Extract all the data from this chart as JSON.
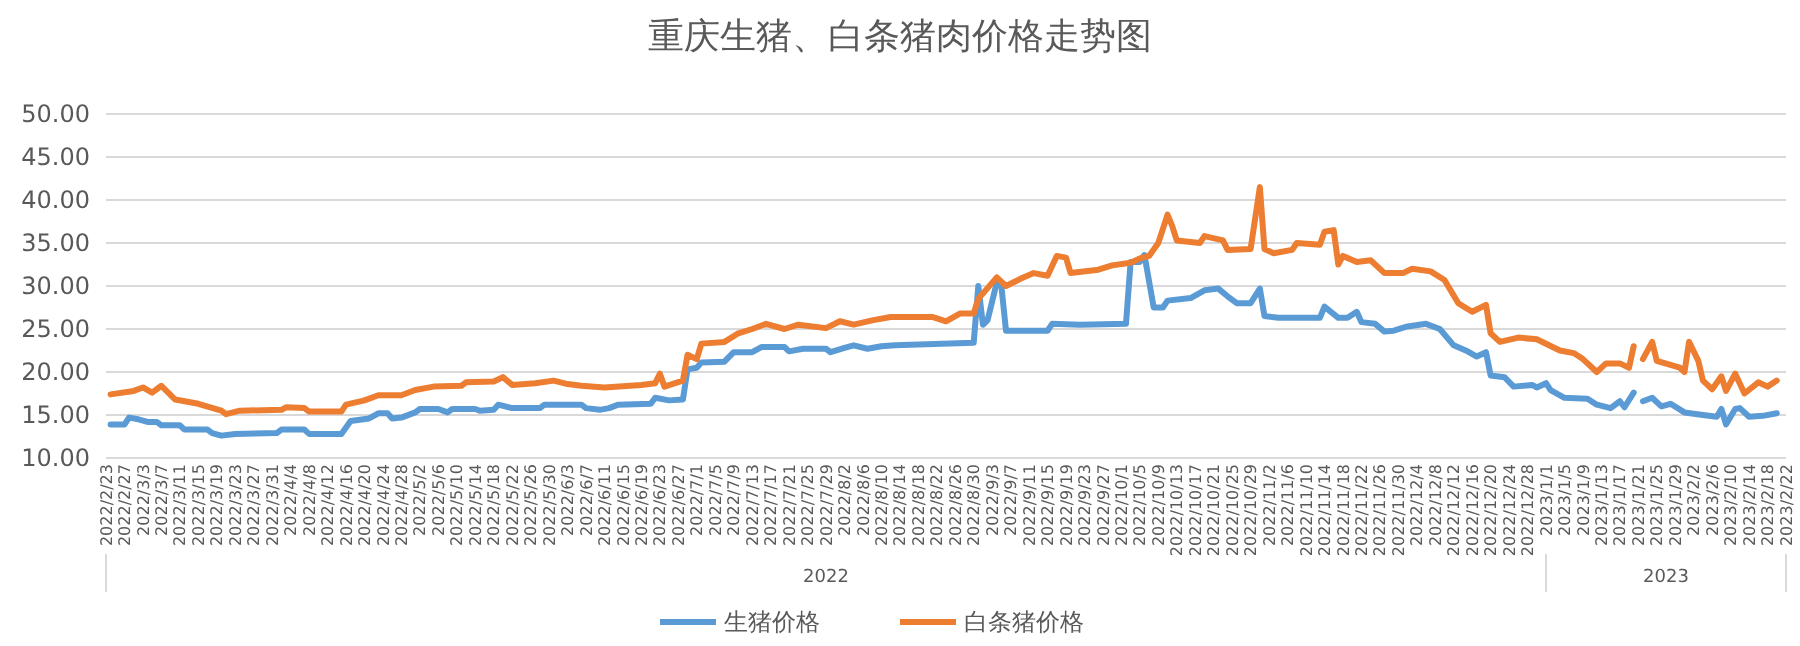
{
  "chart_data": {
    "type": "line",
    "title": "重庆生猪、白条猪肉价格走势图",
    "xlim": [
      "2022-02-23",
      "2023-02-22"
    ],
    "xticks": [
      {
        "value": "2022-02-23",
        "label": "2022/2/23"
      },
      {
        "value": "2022-02-27",
        "label": "2022/2/27"
      },
      {
        "value": "2022-03-03",
        "label": "2022/3/3"
      },
      {
        "value": "2022-03-07",
        "label": "2022/3/7"
      },
      {
        "value": "2022-03-11",
        "label": "2022/3/11"
      },
      {
        "value": "2022-03-15",
        "label": "2022/3/15"
      },
      {
        "value": "2022-03-19",
        "label": "2022/3/19"
      },
      {
        "value": "2022-03-23",
        "label": "2022/3/23"
      },
      {
        "value": "2022-03-27",
        "label": "2022/3/27"
      },
      {
        "value": "2022-03-31",
        "label": "2022/3/31"
      },
      {
        "value": "2022-04-04",
        "label": "2022/4/4"
      },
      {
        "value": "2022-04-08",
        "label": "2022/4/8"
      },
      {
        "value": "2022-04-12",
        "label": "2022/4/12"
      },
      {
        "value": "2022-04-16",
        "label": "2022/4/16"
      },
      {
        "value": "2022-04-20",
        "label": "2022/4/20"
      },
      {
        "value": "2022-04-24",
        "label": "2022/4/24"
      },
      {
        "value": "2022-04-28",
        "label": "2022/4/28"
      },
      {
        "value": "2022-05-02",
        "label": "2022/5/2"
      },
      {
        "value": "2022-05-06",
        "label": "2022/5/6"
      },
      {
        "value": "2022-05-10",
        "label": "2022/5/10"
      },
      {
        "value": "2022-05-14",
        "label": "2022/5/14"
      },
      {
        "value": "2022-05-18",
        "label": "2022/5/18"
      },
      {
        "value": "2022-05-22",
        "label": "2022/5/22"
      },
      {
        "value": "2022-05-26",
        "label": "2022/5/26"
      },
      {
        "value": "2022-05-30",
        "label": "2022/5/30"
      },
      {
        "value": "2022-06-03",
        "label": "2022/6/3"
      },
      {
        "value": "2022-06-07",
        "label": "2022/6/7"
      },
      {
        "value": "2022-06-11",
        "label": "2022/6/11"
      },
      {
        "value": "2022-06-15",
        "label": "2022/6/15"
      },
      {
        "value": "2022-06-19",
        "label": "2022/6/19"
      },
      {
        "value": "2022-06-23",
        "label": "2022/6/23"
      },
      {
        "value": "2022-06-27",
        "label": "2022/6/27"
      },
      {
        "value": "2022-07-01",
        "label": "2022/7/1"
      },
      {
        "value": "2022-07-05",
        "label": "2022/7/5"
      },
      {
        "value": "2022-07-09",
        "label": "2022/7/9"
      },
      {
        "value": "2022-07-13",
        "label": "2022/7/13"
      },
      {
        "value": "2022-07-17",
        "label": "2022/7/17"
      },
      {
        "value": "2022-07-21",
        "label": "2022/7/21"
      },
      {
        "value": "2022-07-25",
        "label": "2022/7/25"
      },
      {
        "value": "2022-07-29",
        "label": "2022/7/29"
      },
      {
        "value": "2022-08-02",
        "label": "2022/8/2"
      },
      {
        "value": "2022-08-06",
        "label": "2022/8/6"
      },
      {
        "value": "2022-08-10",
        "label": "2022/8/10"
      },
      {
        "value": "2022-08-14",
        "label": "2022/8/14"
      },
      {
        "value": "2022-08-18",
        "label": "2022/8/18"
      },
      {
        "value": "2022-08-22",
        "label": "2022/8/22"
      },
      {
        "value": "2022-08-26",
        "label": "2022/8/26"
      },
      {
        "value": "2022-08-30",
        "label": "2022/8/30"
      },
      {
        "value": "2022-09-03",
        "label": "2022/9/3"
      },
      {
        "value": "2022-09-07",
        "label": "2022/9/7"
      },
      {
        "value": "2022-09-11",
        "label": "2022/9/11"
      },
      {
        "value": "2022-09-15",
        "label": "2022/9/15"
      },
      {
        "value": "2022-09-19",
        "label": "2022/9/19"
      },
      {
        "value": "2022-09-23",
        "label": "2022/9/23"
      },
      {
        "value": "2022-09-27",
        "label": "2022/9/27"
      },
      {
        "value": "2022-10-01",
        "label": "2022/10/1"
      },
      {
        "value": "2022-10-05",
        "label": "2022/10/5"
      },
      {
        "value": "2022-10-09",
        "label": "2022/10/9"
      },
      {
        "value": "2022-10-13",
        "label": "2022/10/13"
      },
      {
        "value": "2022-10-17",
        "label": "2022/10/17"
      },
      {
        "value": "2022-10-21",
        "label": "2022/10/21"
      },
      {
        "value": "2022-10-25",
        "label": "2022/10/25"
      },
      {
        "value": "2022-10-29",
        "label": "2022/10/29"
      },
      {
        "value": "2022-11-02",
        "label": "2022/11/2"
      },
      {
        "value": "2022-11-06",
        "label": "2022/11/6"
      },
      {
        "value": "2022-11-10",
        "label": "2022/11/10"
      },
      {
        "value": "2022-11-14",
        "label": "2022/11/14"
      },
      {
        "value": "2022-11-18",
        "label": "2022/11/18"
      },
      {
        "value": "2022-11-22",
        "label": "2022/11/22"
      },
      {
        "value": "2022-11-26",
        "label": "2022/11/26"
      },
      {
        "value": "2022-11-30",
        "label": "2022/11/30"
      },
      {
        "value": "2022-12-04",
        "label": "2022/12/4"
      },
      {
        "value": "2022-12-08",
        "label": "2022/12/8"
      },
      {
        "value": "2022-12-12",
        "label": "2022/12/12"
      },
      {
        "value": "2022-12-16",
        "label": "2022/12/16"
      },
      {
        "value": "2022-12-20",
        "label": "2022/12/20"
      },
      {
        "value": "2022-12-24",
        "label": "2022/12/24"
      },
      {
        "value": "2022-12-28",
        "label": "2022/12/28"
      },
      {
        "value": "2023-01-01",
        "label": "2023/1/1"
      },
      {
        "value": "2023-01-05",
        "label": "2023/1/5"
      },
      {
        "value": "2023-01-09",
        "label": "2023/1/9"
      },
      {
        "value": "2023-01-13",
        "label": "2023/1/13"
      },
      {
        "value": "2023-01-17",
        "label": "2023/1/17"
      },
      {
        "value": "2023-01-21",
        "label": "2023/1/21"
      },
      {
        "value": "2023-01-25",
        "label": "2023/1/25"
      },
      {
        "value": "2023-01-29",
        "label": "2023/1/29"
      },
      {
        "value": "2023-02-02",
        "label": "2023/2/2"
      },
      {
        "value": "2023-02-06",
        "label": "2023/2/6"
      },
      {
        "value": "2023-02-10",
        "label": "2023/2/10"
      },
      {
        "value": "2023-02-14",
        "label": "2023/2/14"
      },
      {
        "value": "2023-02-18",
        "label": "2023/2/18"
      },
      {
        "value": "2023-02-22",
        "label": "2023/2/22"
      }
    ],
    "ylim": [
      10,
      50
    ],
    "yticks": [
      {
        "value": 10,
        "label": "10.00"
      },
      {
        "value": 15,
        "label": "15.00"
      },
      {
        "value": 20,
        "label": "20.00"
      },
      {
        "value": 25,
        "label": "25.00"
      },
      {
        "value": 30,
        "label": "30.00"
      },
      {
        "value": 35,
        "label": "35.00"
      },
      {
        "value": 40,
        "label": "40.00"
      },
      {
        "value": 45,
        "label": "45.00"
      },
      {
        "value": 50,
        "label": "50.00"
      }
    ],
    "grid": "y",
    "legend": "bottom",
    "marker": "none",
    "line_style": "solid",
    "annotations": [
      "2022",
      "2023"
    ],
    "series": [
      {
        "name": "生猪价格",
        "color": "#5b9bd5",
        "x": [
          "2022-02-24",
          "2022-02-27",
          "2022-02-28",
          "2022-03-02",
          "2022-03-04",
          "2022-03-06",
          "2022-03-07",
          "2022-03-11",
          "2022-03-12",
          "2022-03-17",
          "2022-03-18",
          "2022-03-20",
          "2022-03-23",
          "2022-04-01",
          "2022-04-02",
          "2022-04-07",
          "2022-04-08",
          "2022-04-15",
          "2022-04-17",
          "2022-04-21",
          "2022-04-23",
          "2022-04-25",
          "2022-04-26",
          "2022-04-28",
          "2022-05-01",
          "2022-05-02",
          "2022-05-06",
          "2022-05-08",
          "2022-05-09",
          "2022-05-14",
          "2022-05-15",
          "2022-05-18",
          "2022-05-19",
          "2022-05-22",
          "2022-05-28",
          "2022-05-29",
          "2022-06-06",
          "2022-06-07",
          "2022-06-10",
          "2022-06-12",
          "2022-06-14",
          "2022-06-21",
          "2022-06-22",
          "2022-06-25",
          "2022-06-28",
          "2022-06-29",
          "2022-07-01",
          "2022-07-02",
          "2022-07-07",
          "2022-07-09",
          "2022-07-13",
          "2022-07-15",
          "2022-07-20",
          "2022-07-21",
          "2022-07-24",
          "2022-07-29",
          "2022-07-30",
          "2022-08-02",
          "2022-08-04",
          "2022-08-07",
          "2022-08-10",
          "2022-08-13",
          "2022-08-30",
          "2022-08-31",
          "2022-09-01",
          "2022-09-02",
          "2022-09-04",
          "2022-09-05",
          "2022-09-06",
          "2022-09-15",
          "2022-09-16",
          "2022-09-22",
          "2022-10-02",
          "2022-10-03",
          "2022-10-05",
          "2022-10-06",
          "2022-10-08",
          "2022-10-10",
          "2022-10-11",
          "2022-10-16",
          "2022-10-19",
          "2022-10-22",
          "2022-10-24",
          "2022-10-26",
          "2022-10-29",
          "2022-10-31",
          "2022-11-01",
          "2022-11-04",
          "2022-11-13",
          "2022-11-14",
          "2022-11-17",
          "2022-11-19",
          "2022-11-21",
          "2022-11-22",
          "2022-11-25",
          "2022-11-27",
          "2022-11-29",
          "2022-12-02",
          "2022-12-06",
          "2022-12-09",
          "2022-12-12",
          "2022-12-15",
          "2022-12-17",
          "2022-12-19",
          "2022-12-20",
          "2022-12-23",
          "2022-12-25",
          "2022-12-29",
          "2022-12-30",
          "2023-01-01",
          "2023-01-02",
          "2023-01-05",
          "2023-01-10",
          "2023-01-12",
          "2023-01-15",
          "2023-01-17",
          "2023-01-18",
          "2023-01-20",
          "2023-01-21",
          "2023-01-22",
          "2023-01-24",
          "2023-01-26",
          "2023-01-28",
          "2023-01-31",
          "2023-02-04",
          "2023-02-07",
          "2023-02-08",
          "2023-02-09",
          "2023-02-11",
          "2023-02-12",
          "2023-02-14",
          "2023-02-17",
          "2023-02-20"
        ],
        "values": [
          13.9,
          13.9,
          14.7,
          14.5,
          14.2,
          14.2,
          13.8,
          13.8,
          13.3,
          13.3,
          12.9,
          12.6,
          12.8,
          12.9,
          13.3,
          13.3,
          12.8,
          12.8,
          14.3,
          14.6,
          15.2,
          15.2,
          14.6,
          14.7,
          15.3,
          15.7,
          15.7,
          15.3,
          15.7,
          15.7,
          15.5,
          15.6,
          16.2,
          15.8,
          15.8,
          16.2,
          16.2,
          15.8,
          15.6,
          15.8,
          16.2,
          16.3,
          17.0,
          16.7,
          16.8,
          20.3,
          20.5,
          21.1,
          21.2,
          22.3,
          22.3,
          22.9,
          22.9,
          22.4,
          22.7,
          22.7,
          22.3,
          22.8,
          23.1,
          22.7,
          23.0,
          23.1,
          23.4,
          30.0,
          25.5,
          26.0,
          30.4,
          30.0,
          24.8,
          24.8,
          25.6,
          25.5,
          25.6,
          32.8,
          32.8,
          33.6,
          27.5,
          27.5,
          28.3,
          28.6,
          29.5,
          29.7,
          28.8,
          28.0,
          28.0,
          29.7,
          26.5,
          26.3,
          26.3,
          27.6,
          26.3,
          26.3,
          27.0,
          25.8,
          25.6,
          24.7,
          24.8,
          25.3,
          25.6,
          25.0,
          23.1,
          22.4,
          21.8,
          22.3,
          19.6,
          19.4,
          18.3,
          18.5,
          18.2,
          18.7,
          17.9,
          17.0,
          16.9,
          16.2,
          15.8,
          16.6,
          15.9,
          17.6,
          null,
          16.6,
          17.0,
          16.0,
          16.3,
          15.3,
          15.0,
          14.8,
          15.7,
          13.9,
          15.7,
          15.8,
          14.8,
          14.9,
          15.2
        ]
      },
      {
        "name": "白条猪价格",
        "color": "#ed7d31",
        "x": [
          "2022-02-24",
          "2022-03-01",
          "2022-03-03",
          "2022-03-05",
          "2022-03-07",
          "2022-03-10",
          "2022-03-15",
          "2022-03-20",
          "2022-03-21",
          "2022-03-24",
          "2022-04-02",
          "2022-04-03",
          "2022-04-07",
          "2022-04-08",
          "2022-04-15",
          "2022-04-16",
          "2022-04-20",
          "2022-04-23",
          "2022-04-28",
          "2022-05-01",
          "2022-05-05",
          "2022-05-11",
          "2022-05-12",
          "2022-05-18",
          "2022-05-20",
          "2022-05-22",
          "2022-05-27",
          "2022-05-31",
          "2022-06-03",
          "2022-06-06",
          "2022-06-11",
          "2022-06-19",
          "2022-06-22",
          "2022-06-23",
          "2022-06-24",
          "2022-06-28",
          "2022-06-29",
          "2022-07-01",
          "2022-07-02",
          "2022-07-07",
          "2022-07-10",
          "2022-07-13",
          "2022-07-16",
          "2022-07-20",
          "2022-07-23",
          "2022-07-29",
          "2022-08-01",
          "2022-08-04",
          "2022-08-08",
          "2022-08-12",
          "2022-08-14",
          "2022-08-21",
          "2022-08-24",
          "2022-08-27",
          "2022-08-30",
          "2022-08-31",
          "2022-09-04",
          "2022-09-06",
          "2022-09-09",
          "2022-09-12",
          "2022-09-15",
          "2022-09-17",
          "2022-09-19",
          "2022-09-20",
          "2022-09-26",
          "2022-09-29",
          "2022-10-03",
          "2022-10-05",
          "2022-10-07",
          "2022-10-09",
          "2022-10-11",
          "2022-10-12",
          "2022-10-13",
          "2022-10-18",
          "2022-10-19",
          "2022-10-23",
          "2022-10-24",
          "2022-10-29",
          "2022-10-31",
          "2022-11-01",
          "2022-11-03",
          "2022-11-07",
          "2022-11-08",
          "2022-11-13",
          "2022-11-14",
          "2022-11-16",
          "2022-11-17",
          "2022-11-18",
          "2022-11-21",
          "2022-11-24",
          "2022-11-27",
          "2022-12-01",
          "2022-12-03",
          "2022-12-07",
          "2022-12-10",
          "2022-12-13",
          "2022-12-16",
          "2022-12-19",
          "2022-12-20",
          "2022-12-22",
          "2022-12-26",
          "2022-12-30",
          "2023-01-04",
          "2023-01-07",
          "2023-01-09",
          "2023-01-12",
          "2023-01-14",
          "2023-01-17",
          "2023-01-19",
          "2023-01-20",
          "2023-01-21",
          "2023-01-22",
          "2023-01-24",
          "2023-01-25",
          "2023-01-30",
          "2023-01-31",
          "2023-02-01",
          "2023-02-03",
          "2023-02-04",
          "2023-02-06",
          "2023-02-08",
          "2023-02-09",
          "2023-02-11",
          "2023-02-13",
          "2023-02-16",
          "2023-02-18",
          "2023-02-20"
        ],
        "values": [
          17.4,
          17.8,
          18.2,
          17.6,
          18.4,
          16.8,
          16.3,
          15.5,
          15.1,
          15.5,
          15.6,
          15.9,
          15.8,
          15.4,
          15.4,
          16.2,
          16.7,
          17.3,
          17.3,
          17.9,
          18.3,
          18.4,
          18.8,
          18.9,
          19.4,
          18.5,
          18.7,
          19.0,
          18.6,
          18.4,
          18.2,
          18.5,
          18.7,
          19.8,
          18.3,
          19.0,
          22.0,
          21.5,
          23.3,
          23.5,
          24.5,
          25.0,
          25.6,
          25.0,
          25.5,
          25.1,
          25.9,
          25.5,
          26.0,
          26.4,
          26.4,
          26.4,
          25.9,
          26.8,
          26.8,
          28.5,
          31.0,
          30.0,
          30.8,
          31.5,
          31.2,
          33.5,
          33.3,
          31.5,
          31.9,
          32.4,
          32.7,
          33.2,
          33.5,
          35.0,
          38.3,
          37.0,
          35.3,
          35.0,
          35.8,
          35.3,
          34.2,
          34.3,
          41.5,
          34.3,
          33.8,
          34.2,
          35.0,
          34.8,
          36.3,
          36.5,
          32.5,
          33.5,
          32.8,
          33.0,
          31.5,
          31.5,
          32.0,
          31.7,
          30.7,
          28.0,
          27.0,
          27.8,
          24.5,
          23.5,
          24.0,
          23.8,
          22.5,
          22.2,
          21.5,
          20.0,
          21.0,
          21.0,
          20.5,
          23.0,
          null,
          21.5,
          23.5,
          21.3,
          20.5,
          20.0,
          23.5,
          21.3,
          19.0,
          18.0,
          19.5,
          17.8,
          19.8,
          17.5,
          18.8,
          18.3,
          19.0
        ]
      }
    ]
  }
}
